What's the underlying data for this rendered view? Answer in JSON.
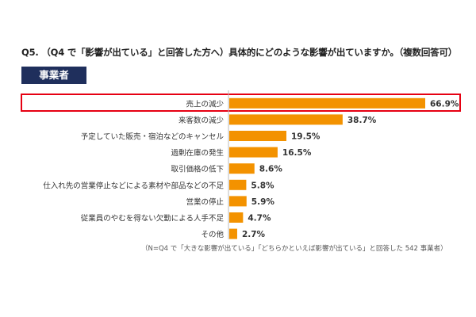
{
  "question": "Q5. （Q4 で「影響が出ている」と回答した方へ）具体的にどのような影響が出ていますか。（複数回答可）",
  "badge": "事業者",
  "note": "（N=Q4 で「大きな影響が出ている」「どちらかといえば影響が出ている」と回答した 542 事業者）",
  "colors": {
    "bar": "#f39200",
    "highlight": "#e60012",
    "badge_bg": "#1f2f5c"
  },
  "chart_data": {
    "type": "bar",
    "orientation": "horizontal",
    "categories": [
      "売上の減少",
      "来客数の減少",
      "予定していた販売・宿泊などのキャンセル",
      "過剰在庫の発生",
      "取引価格の低下",
      "仕入れ先の営業停止などによる素材や部品などの不足",
      "営業の停止",
      "従業員のやむを得ない欠勤による人手不足",
      "その他"
    ],
    "values": [
      66.9,
      38.7,
      19.5,
      16.5,
      8.6,
      5.8,
      5.9,
      4.7,
      2.7
    ],
    "value_labels": [
      "66.9%",
      "38.7%",
      "19.5%",
      "16.5%",
      "8.6%",
      "5.8%",
      "5.9%",
      "4.7%",
      "2.7%"
    ],
    "highlighted_category": "売上の減少",
    "xlim": [
      0,
      70
    ],
    "grid": false,
    "legend": "none"
  }
}
